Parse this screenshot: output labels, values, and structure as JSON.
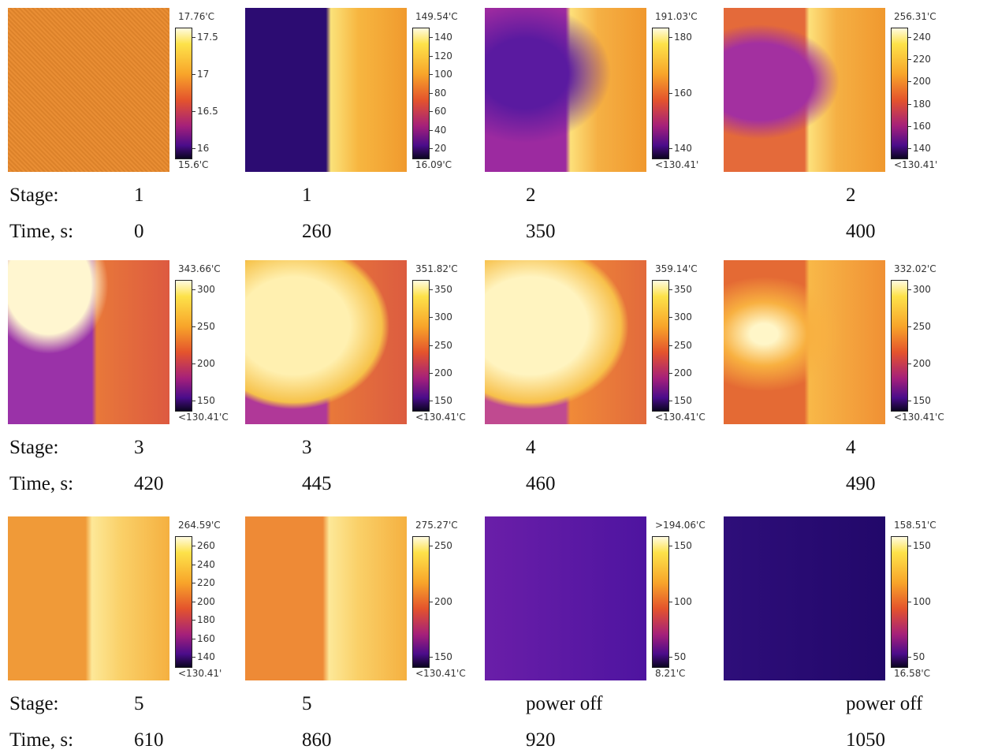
{
  "rows": [
    {
      "stage_label": "Stage:",
      "time_label": "Time, s:",
      "panels": [
        {
          "max_label": "17.76'C",
          "min_label": "15.6'C",
          "ticks": [
            17.5,
            17,
            16.5,
            16
          ],
          "stage": 1,
          "time": 0
        },
        {
          "max_label": "149.54'C",
          "min_label": "16.09'C",
          "ticks": [
            140,
            120,
            100,
            80,
            60,
            40,
            20
          ],
          "stage": 1,
          "time": 260
        },
        {
          "max_label": "191.03'C",
          "min_label": "<130.41'",
          "ticks": [
            180,
            160,
            140
          ],
          "stage": 2,
          "time": 350
        },
        {
          "max_label": "256.31'C",
          "min_label": "<130.41'",
          "ticks": [
            240,
            220,
            200,
            180,
            160,
            140
          ],
          "stage": 2,
          "time": 400
        }
      ]
    },
    {
      "stage_label": "Stage:",
      "time_label": "Time, s:",
      "panels": [
        {
          "max_label": "343.66'C",
          "min_label": "<130.41'C",
          "ticks": [
            300,
            250,
            200,
            150
          ],
          "stage": 3,
          "time": 420
        },
        {
          "max_label": "351.82'C",
          "min_label": "<130.41'C",
          "ticks": [
            350,
            300,
            250,
            200,
            150
          ],
          "stage": 3,
          "time": 445
        },
        {
          "max_label": "359.14'C",
          "min_label": "<130.41'C",
          "ticks": [
            350,
            300,
            250,
            200,
            150
          ],
          "stage": 4,
          "time": 460
        },
        {
          "max_label": "332.02'C",
          "min_label": "<130.41'C",
          "ticks": [
            300,
            250,
            200,
            150
          ],
          "stage": 4,
          "time": 490
        }
      ]
    },
    {
      "stage_label": "Stage:",
      "time_label": "Time, s:",
      "panels": [
        {
          "max_label": "264.59'C",
          "min_label": "<130.41'",
          "ticks": [
            260,
            240,
            220,
            200,
            180,
            160,
            140
          ],
          "stage": 5,
          "time": 610
        },
        {
          "max_label": "275.27'C",
          "min_label": "<130.41'C",
          "ticks": [
            250,
            200,
            150
          ],
          "stage": 5,
          "time": 860
        },
        {
          "max_label": ">194.06'C",
          "min_label": "8.21'C",
          "ticks": [
            150,
            100,
            50
          ],
          "stage": "power off",
          "time": 920
        },
        {
          "max_label": "158.51'C",
          "min_label": "16.58'C",
          "ticks": [
            150,
            100,
            50
          ],
          "stage": "power off",
          "time": 1050
        }
      ]
    }
  ]
}
